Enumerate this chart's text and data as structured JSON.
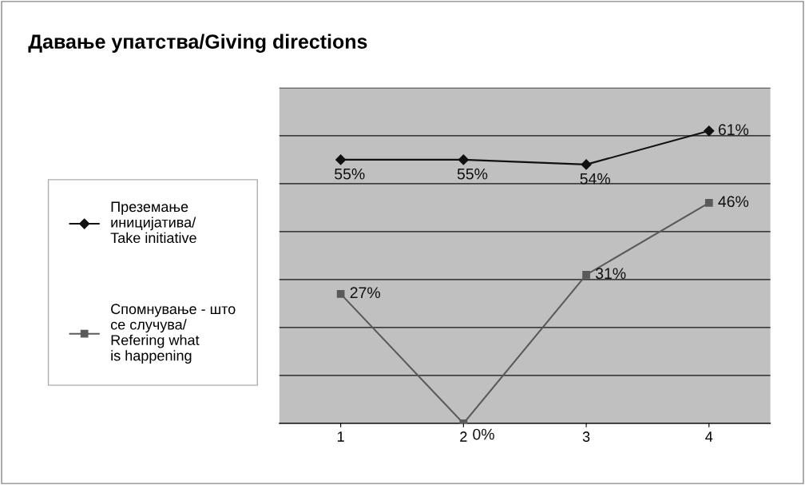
{
  "chart_data": {
    "type": "line",
    "title": "Давање упатства/Giving directions",
    "categories": [
      "1",
      "2",
      "3",
      "4"
    ],
    "series": [
      {
        "name": "Преземање\nиницијатива/\nTake initiative",
        "color": "#111111",
        "marker": "diamond",
        "values": [
          55,
          55,
          54,
          61
        ],
        "value_labels": [
          "55%",
          "55%",
          "54%",
          "61%"
        ]
      },
      {
        "name": "Спомнување - што\nсе случува/\nRefering what\nis happening",
        "color": "#5a5a5a",
        "marker": "square",
        "values": [
          27,
          0,
          31,
          46
        ],
        "value_labels": [
          "27%",
          "0%",
          "31%",
          "46%"
        ]
      }
    ],
    "ylim": [
      0,
      70
    ],
    "yticks": [
      {
        "value": 0,
        "label": null
      },
      {
        "value": 10,
        "label": null
      },
      {
        "value": 20,
        "label": null
      },
      {
        "value": 30,
        "label": null
      },
      {
        "value": 40,
        "label": null
      },
      {
        "value": 50,
        "label": null
      },
      {
        "value": 60,
        "label": null
      },
      {
        "value": 70,
        "label": null
      }
    ],
    "grid": "y",
    "legend": "left",
    "line_style": "solid"
  }
}
